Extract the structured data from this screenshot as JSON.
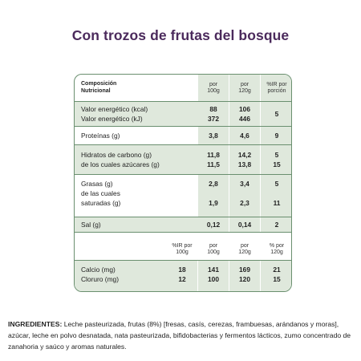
{
  "title": "Con trozos de frutas del bosque",
  "table1": {
    "header": {
      "label_line1": "Composición",
      "label_line2": "Nutricional",
      "col1_line1": "por",
      "col1_line2": "100g",
      "col2_line1": "por",
      "col2_line2": "120g",
      "col3_line1": "%IR por",
      "col3_line2": "porción"
    },
    "rows": [
      {
        "label1": "Valor energético (kcal)",
        "label2": "Valor energético (kJ)",
        "c1a": "88",
        "c1b": "372",
        "c2a": "106",
        "c2b": "446",
        "c3": "5"
      },
      {
        "label1": "Proteínas (g)",
        "c1a": "3,8",
        "c2a": "4,6",
        "c3": "9"
      },
      {
        "label1": "Hidratos de carbono (g)",
        "label2": "de los cuales azúcares (g)",
        "c1a": "11,8",
        "c1b": "11,5",
        "c2a": "14,2",
        "c2b": "13,8",
        "c3a": "5",
        "c3b": "15"
      },
      {
        "label1": "Grasas (g)",
        "label2": "de las cuales",
        "label3": "saturadas (g)",
        "c1a": "2,8",
        "c1b": "1,9",
        "c2a": "3,4",
        "c2b": "2,3",
        "c3a": "5",
        "c3b": "11"
      },
      {
        "label1": "Sal (g)",
        "c1a": "0,12",
        "c2a": "0,14",
        "c3": "2"
      }
    ]
  },
  "table2": {
    "header": {
      "col0_line1": "%IR por",
      "col0_line2": "100g",
      "col1_line1": "por",
      "col1_line2": "100g",
      "col2_line1": "por",
      "col2_line2": "120g",
      "col3_line1": "% por",
      "col3_line2": "120g"
    },
    "rows": [
      {
        "label1": "Calcio (mg)",
        "label2": "Cloruro (mg)",
        "c0a": "18",
        "c0b": "12",
        "c1a": "141",
        "c1b": "100",
        "c2a": "169",
        "c2b": "120",
        "c3a": "21",
        "c3b": "15"
      }
    ]
  },
  "ingredients": {
    "label": "INGREDIENTES:",
    "text": " Leche pasteurizada, frutas (8%) [fresas, casís, cerezas, frambuesas, arándanos y moras], azúcar, leche en polvo desnatada, nata pasteurizada, bifidobacterias y fermentos lácticos, zumo concentrado de zanahoria y saúco y aromas naturales."
  },
  "colors": {
    "title": "#4b2a5c",
    "border": "#6a8f6f",
    "shade": "#dfe8dc"
  }
}
